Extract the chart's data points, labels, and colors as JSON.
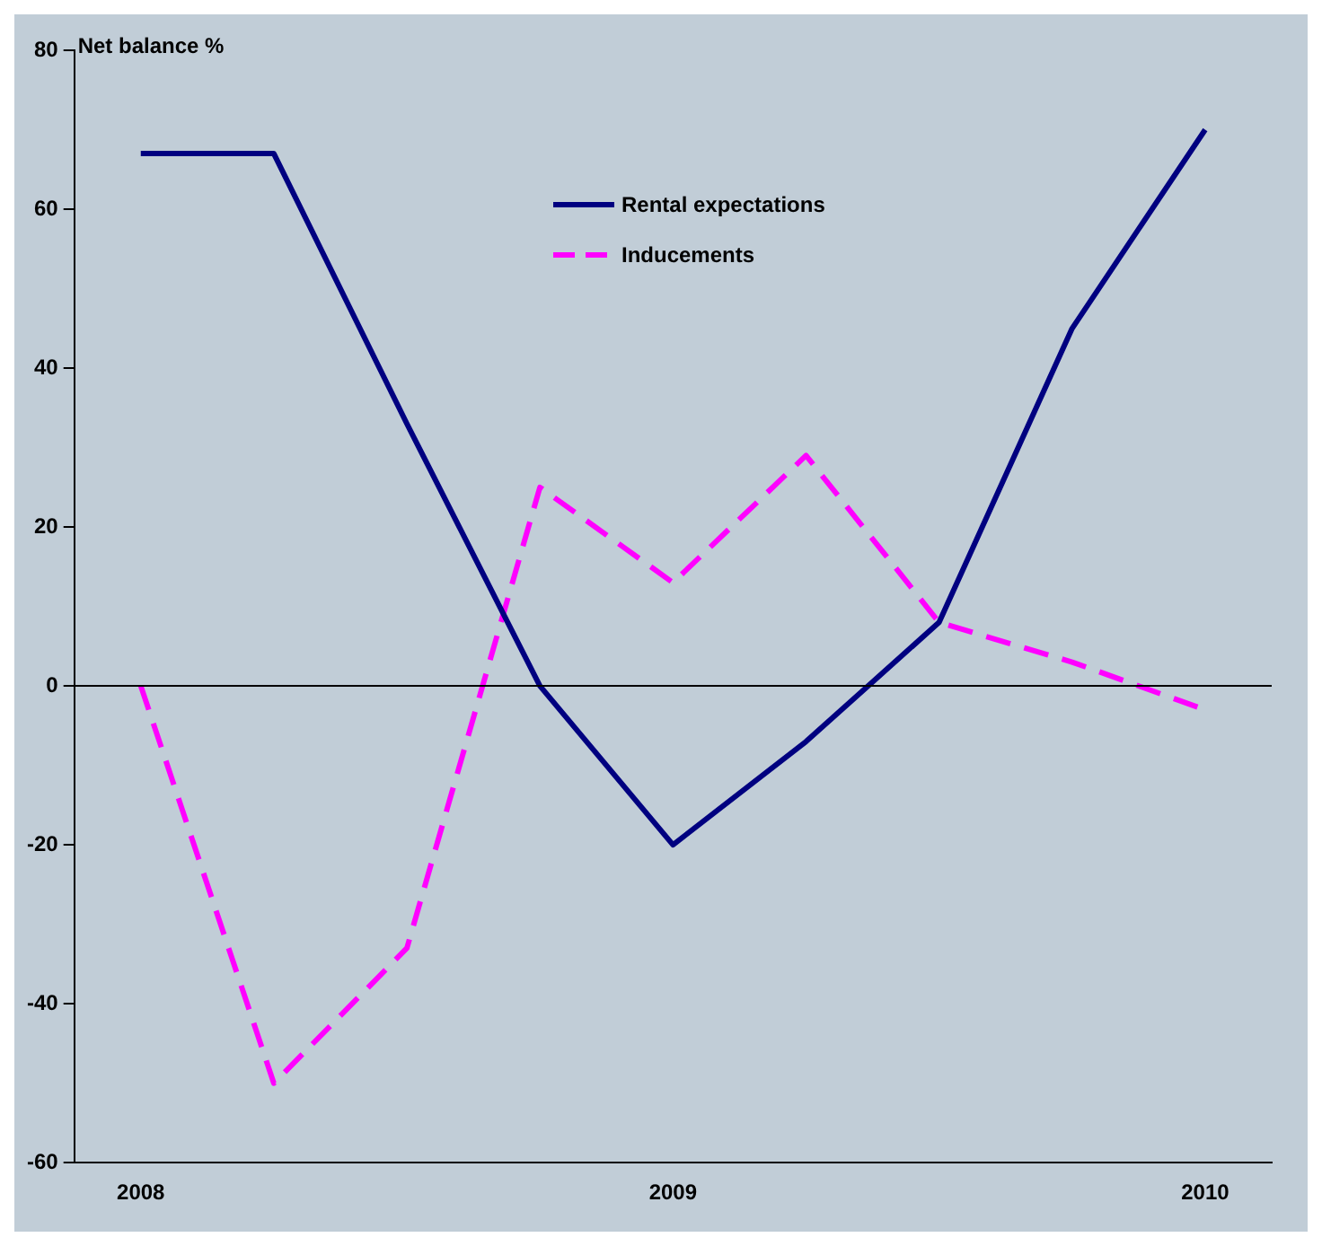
{
  "chart_data": {
    "type": "line",
    "ylabel": "Net balance %",
    "categories": [
      "2008",
      null,
      null,
      null,
      "2009",
      null,
      null,
      null,
      "2010"
    ],
    "series": [
      {
        "name": "Rental expectations",
        "color": "#000080",
        "line_style": "solid",
        "values": [
          67,
          67,
          33,
          0,
          -20,
          -7,
          8,
          45,
          70
        ]
      },
      {
        "name": "Inducements",
        "color": "#ff00ff",
        "line_style": "dashed",
        "values": [
          0,
          -50,
          -33,
          25,
          13,
          29,
          8,
          3,
          -3
        ]
      }
    ],
    "ylim": [
      -60,
      80
    ],
    "yticks": [
      -60,
      -40,
      -20,
      0,
      20,
      40,
      60,
      80
    ],
    "grid": false,
    "legend": "top",
    "marker": "none",
    "ref_lines": [
      {
        "axis": "y",
        "value": 0,
        "color": "#000000"
      }
    ]
  }
}
